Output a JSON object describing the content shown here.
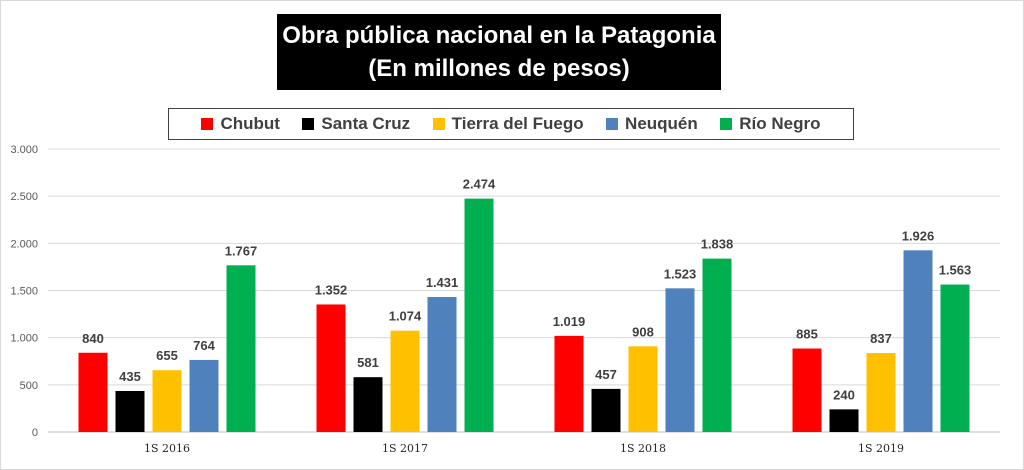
{
  "chart_data": {
    "type": "bar",
    "title": "Obra pública nacional en la Patagonia",
    "subtitle": "(En millones de pesos)",
    "categories": [
      "1S 2016",
      "1S 2017",
      "1S 2018",
      "1S 2019"
    ],
    "series": [
      {
        "name": "Chubut",
        "color": "#ff0000",
        "values": [
          840,
          1352,
          1019,
          885
        ],
        "labels": [
          "840",
          "1.352",
          "1.019",
          "885"
        ]
      },
      {
        "name": "Santa Cruz",
        "color": "#000000",
        "values": [
          435,
          581,
          457,
          240
        ],
        "labels": [
          "435",
          "581",
          "457",
          "240"
        ]
      },
      {
        "name": "Tierra del Fuego",
        "color": "#ffc000",
        "values": [
          655,
          1074,
          908,
          837
        ],
        "labels": [
          "655",
          "1.074",
          "908",
          "837"
        ]
      },
      {
        "name": "Neuquén",
        "color": "#4f81bd",
        "values": [
          764,
          1431,
          1523,
          1926
        ],
        "labels": [
          "764",
          "1.431",
          "1.523",
          "1.926"
        ]
      },
      {
        "name": "Río Negro",
        "color": "#00b050",
        "values": [
          1767,
          2474,
          1838,
          1563
        ],
        "labels": [
          "1.767",
          "2.474",
          "1.838",
          "1.563"
        ]
      }
    ],
    "ylim": [
      0,
      3000
    ],
    "yticks": [
      0,
      500,
      1000,
      1500,
      2000,
      2500,
      3000
    ],
    "ytick_labels": [
      "0",
      "500",
      "1.000",
      "1.500",
      "2.000",
      "2.500",
      "3.000"
    ],
    "grid": true,
    "legend": "top",
    "xlabel": "",
    "ylabel": ""
  }
}
